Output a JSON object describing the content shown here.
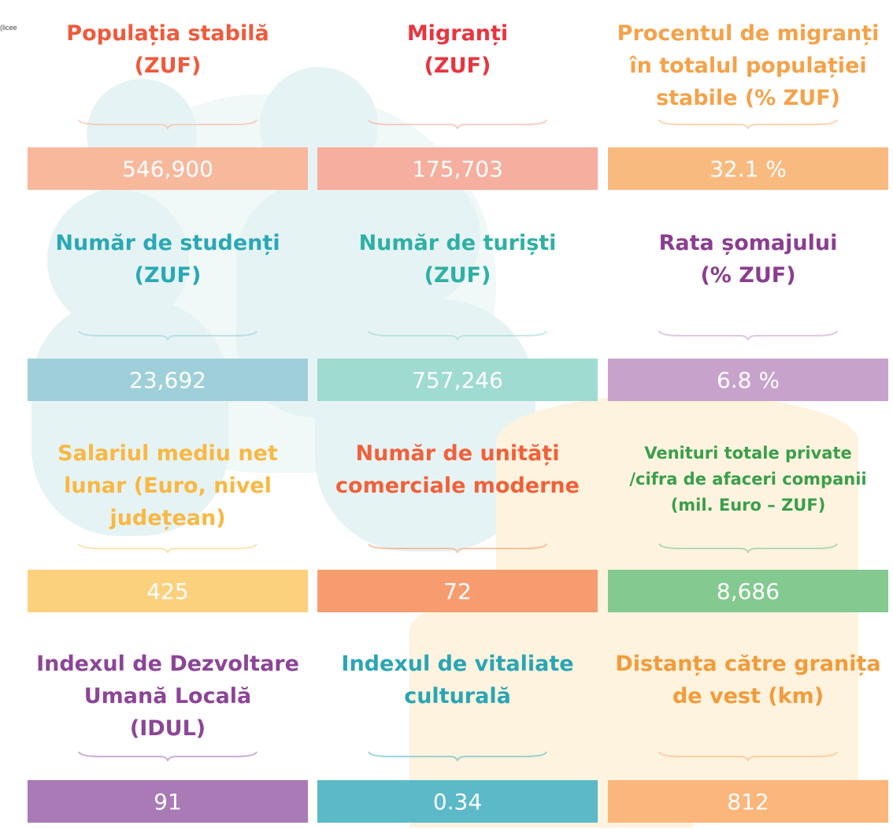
{
  "note": "(licee",
  "cells": [
    {
      "title": [
        "Populația stabilă",
        "(ZUF)"
      ],
      "value": "546,900"
    },
    {
      "title": [
        "Migranți",
        "(ZUF)"
      ],
      "value": "175,703"
    },
    {
      "title": [
        "Procentul de migranți",
        "în totalul populației",
        "stabile (% ZUF)"
      ],
      "value": "32.1 %"
    },
    {
      "title": [
        "Număr de studenți",
        "(ZUF)"
      ],
      "value": "23,692"
    },
    {
      "title": [
        "Număr de turiști",
        "(ZUF)"
      ],
      "value": "757,246"
    },
    {
      "title": [
        "Rata șomajului",
        "(% ZUF)"
      ],
      "value": "6.8 %"
    },
    {
      "title": [
        "Salariul mediu net",
        "lunar (Euro, nivel",
        "județean)"
      ],
      "value": "425"
    },
    {
      "title": [
        "Număr de unități",
        "comerciale moderne"
      ],
      "value": "72"
    },
    {
      "title": [
        "Venituri totale private",
        "/cifra de afaceri companii",
        "(mil. Euro – ZUF)"
      ],
      "value": "8,686"
    },
    {
      "title": [
        "Indexul de Dezvoltare",
        "Umană Locală",
        "(IDUL)"
      ],
      "value": "91"
    },
    {
      "title": [
        "Indexul de vitaliate",
        "culturală"
      ],
      "value": "0.34"
    },
    {
      "title": [
        "Distanța către granița",
        "de vest (km)"
      ],
      "value": "812"
    }
  ]
}
